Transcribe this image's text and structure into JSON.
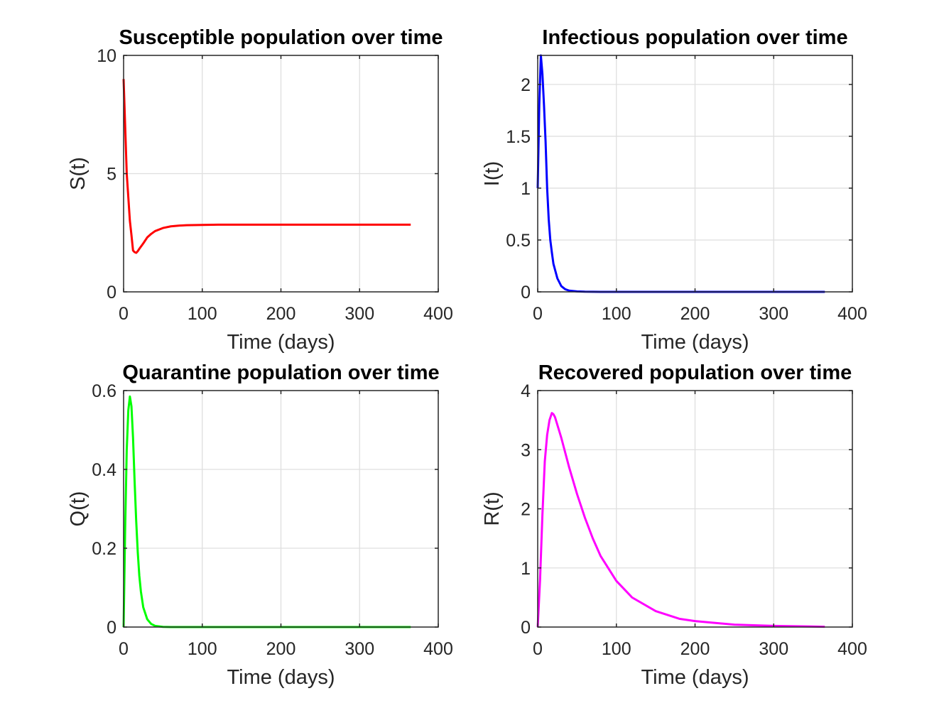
{
  "chart_data": [
    {
      "type": "line",
      "title": "Susceptible population over time",
      "xlabel": "Time (days)",
      "ylabel": "S(t)",
      "xlim": [
        0,
        400
      ],
      "ylim": [
        0,
        10
      ],
      "xticks": [
        0,
        100,
        200,
        300,
        400
      ],
      "yticks": [
        0,
        5,
        10
      ],
      "xtick_labels": [
        "0",
        "100",
        "200",
        "300",
        "400"
      ],
      "ytick_labels": [
        "0",
        "5",
        "10"
      ],
      "grid": true,
      "color": "#ff0000",
      "series": [
        {
          "name": "S(t)",
          "x": [
            0,
            2,
            4,
            6,
            8,
            10,
            12,
            14,
            16,
            18,
            20,
            25,
            30,
            35,
            40,
            50,
            60,
            70,
            80,
            100,
            120,
            150,
            200,
            250,
            300,
            365
          ],
          "y": [
            9.0,
            7.0,
            5.0,
            4.0,
            3.0,
            2.4,
            1.75,
            1.68,
            1.65,
            1.72,
            1.82,
            2.05,
            2.3,
            2.45,
            2.57,
            2.7,
            2.77,
            2.8,
            2.82,
            2.83,
            2.84,
            2.84,
            2.84,
            2.84,
            2.84,
            2.84
          ]
        }
      ]
    },
    {
      "type": "line",
      "title": "Infectious population over time",
      "xlabel": "Time (days)",
      "ylabel": "I(t)",
      "xlim": [
        0,
        400
      ],
      "ylim": [
        0,
        2.28
      ],
      "xticks": [
        0,
        100,
        200,
        300,
        400
      ],
      "yticks": [
        0,
        0.5,
        1,
        1.5,
        2
      ],
      "xtick_labels": [
        "0",
        "100",
        "200",
        "300",
        "400"
      ],
      "ytick_labels": [
        "0",
        "0.5",
        "1",
        "1.5",
        "2"
      ],
      "grid": true,
      "color": "#0000ff",
      "series": [
        {
          "name": "I(t)",
          "x": [
            0,
            2,
            4,
            6,
            8,
            10,
            12,
            14,
            16,
            18,
            20,
            25,
            30,
            35,
            40,
            50,
            60,
            80,
            100,
            150,
            200,
            250,
            300,
            365
          ],
          "y": [
            1.0,
            1.8,
            2.28,
            2.1,
            1.8,
            1.45,
            1.0,
            0.7,
            0.5,
            0.38,
            0.27,
            0.13,
            0.055,
            0.025,
            0.012,
            0.004,
            0.0015,
            0.0002,
            0,
            0,
            0,
            0,
            0,
            0
          ]
        }
      ]
    },
    {
      "type": "line",
      "title": "Quarantine population over time",
      "xlabel": "Time (days)",
      "ylabel": "Q(t)",
      "xlim": [
        0,
        400
      ],
      "ylim": [
        0,
        0.6
      ],
      "xticks": [
        0,
        100,
        200,
        300,
        400
      ],
      "yticks": [
        0,
        0.2,
        0.4,
        0.6
      ],
      "xtick_labels": [
        "0",
        "100",
        "200",
        "300",
        "400"
      ],
      "ytick_labels": [
        "0",
        "0.2",
        "0.4",
        "0.6"
      ],
      "grid": true,
      "color": "#00ff00",
      "series": [
        {
          "name": "Q(t)",
          "x": [
            0,
            2,
            4,
            6,
            8,
            10,
            12,
            14,
            16,
            18,
            20,
            22,
            25,
            30,
            35,
            40,
            50,
            60,
            80,
            100,
            150,
            200,
            250,
            300,
            365
          ],
          "y": [
            0,
            0.25,
            0.45,
            0.55,
            0.585,
            0.56,
            0.48,
            0.37,
            0.27,
            0.19,
            0.13,
            0.09,
            0.05,
            0.02,
            0.008,
            0.003,
            0.0005,
            0.0001,
            0,
            0,
            0,
            0,
            0,
            0,
            0
          ]
        }
      ]
    },
    {
      "type": "line",
      "title": "Recovered population over time",
      "xlabel": "Time (days)",
      "ylabel": "R(t)",
      "xlim": [
        0,
        400
      ],
      "ylim": [
        0,
        4
      ],
      "xticks": [
        0,
        100,
        200,
        300,
        400
      ],
      "yticks": [
        0,
        1,
        2,
        3,
        4
      ],
      "xtick_labels": [
        "0",
        "100",
        "200",
        "300",
        "400"
      ],
      "ytick_labels": [
        "0",
        "1",
        "2",
        "3",
        "4"
      ],
      "grid": true,
      "color": "#ff00ff",
      "series": [
        {
          "name": "R(t)",
          "x": [
            0,
            3,
            6,
            9,
            12,
            15,
            18,
            20,
            22,
            25,
            30,
            40,
            50,
            60,
            70,
            80,
            100,
            120,
            150,
            180,
            200,
            250,
            300,
            365
          ],
          "y": [
            0,
            0.8,
            1.9,
            2.8,
            3.25,
            3.5,
            3.62,
            3.6,
            3.55,
            3.42,
            3.2,
            2.7,
            2.25,
            1.85,
            1.5,
            1.2,
            0.78,
            0.5,
            0.27,
            0.14,
            0.1,
            0.04,
            0.02,
            0.005
          ]
        }
      ]
    }
  ],
  "colors": {
    "axis": "#262626",
    "grid": "#dfdfdf",
    "background": "#ffffff"
  }
}
